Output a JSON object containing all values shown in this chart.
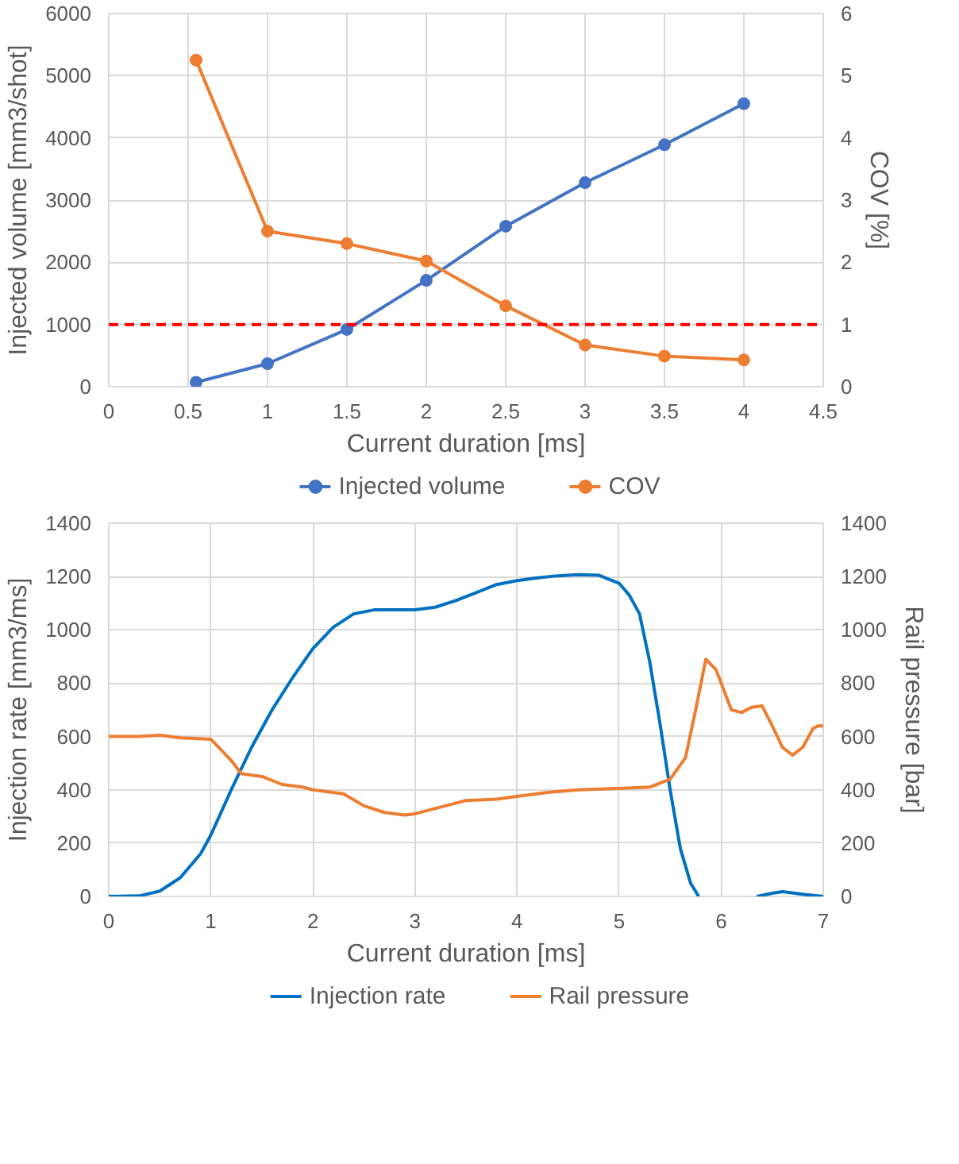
{
  "chart_data": [
    {
      "type": "line",
      "xlabel": "Current duration [ms]",
      "ylabel": "Injected volume [mm3/shot]",
      "y2label": "COV [%]",
      "x": [
        0.55,
        1,
        1.5,
        2,
        2.5,
        3,
        3.5,
        4
      ],
      "series": [
        {
          "name": "Injected volume",
          "color": "#4472c4",
          "values": [
            70,
            370,
            920,
            1710,
            2580,
            3280,
            3890,
            4550
          ]
        },
        {
          "name": "COV",
          "color": "#ed7d31",
          "axis": "y2",
          "values": [
            5.25,
            2.5,
            2.3,
            2.02,
            1.3,
            0.67,
            0.49,
            0.43
          ]
        }
      ],
      "xlim": [
        0,
        4.5
      ],
      "xticks": [
        0,
        0.5,
        1,
        1.5,
        2,
        2.5,
        3,
        3.5,
        4,
        4.5
      ],
      "ylim": [
        0,
        6000
      ],
      "yticks": [
        0,
        1000,
        2000,
        3000,
        4000,
        5000,
        6000
      ],
      "y2lim": [
        0,
        6
      ],
      "y2ticks": [
        0,
        1,
        2,
        3,
        4,
        5,
        6
      ],
      "ref_lines": [
        {
          "axis": "y2",
          "value": 1,
          "color": "#ff0000",
          "line_style": "dashed"
        }
      ],
      "grid": true,
      "legend": "bottom",
      "marker": "circle",
      "line_style": "solid"
    },
    {
      "type": "line",
      "xlabel": "Current duration [ms]",
      "ylabel": "Injection rate [mm3/ms]",
      "y2label": "Rail pressure [bar]",
      "series": [
        {
          "name": "Injection rate",
          "color": "#0070c0",
          "x": [
            0,
            0.3,
            0.5,
            0.7,
            0.9,
            1.0,
            1.2,
            1.4,
            1.6,
            1.8,
            2.0,
            2.2,
            2.4,
            2.6,
            2.8,
            3.0,
            3.2,
            3.4,
            3.6,
            3.8,
            4.0,
            4.2,
            4.4,
            4.6,
            4.8,
            5.0,
            5.1,
            5.2,
            5.3,
            5.4,
            5.5,
            5.6,
            5.7,
            5.78,
            6.0,
            6.35,
            6.5,
            6.6,
            6.8,
            7.0
          ],
          "values": [
            0,
            2,
            20,
            70,
            160,
            230,
            400,
            560,
            700,
            820,
            930,
            1010,
            1060,
            1075,
            1075,
            1075,
            1085,
            1110,
            1140,
            1170,
            1185,
            1195,
            1203,
            1207,
            1205,
            1175,
            1130,
            1060,
            880,
            650,
            400,
            180,
            50,
            0,
            null,
            0,
            12,
            18,
            8,
            0
          ]
        },
        {
          "name": "Rail pressure",
          "color": "#ed7d31",
          "axis": "y2",
          "x": [
            0,
            0.3,
            0.5,
            0.7,
            1.0,
            1.2,
            1.3,
            1.5,
            1.7,
            1.9,
            2.0,
            2.3,
            2.5,
            2.7,
            2.9,
            3.0,
            3.3,
            3.5,
            3.8,
            4.0,
            4.3,
            4.6,
            5.0,
            5.3,
            5.5,
            5.65,
            5.75,
            5.85,
            5.95,
            6.1,
            6.2,
            6.3,
            6.4,
            6.5,
            6.6,
            6.7,
            6.8,
            6.9,
            6.95,
            7.0
          ],
          "values": [
            600,
            600,
            605,
            595,
            590,
            510,
            460,
            450,
            420,
            410,
            400,
            385,
            340,
            315,
            305,
            310,
            340,
            360,
            365,
            375,
            390,
            400,
            405,
            410,
            440,
            520,
            700,
            890,
            850,
            700,
            690,
            710,
            715,
            640,
            560,
            530,
            560,
            630,
            640,
            640
          ]
        }
      ],
      "xlim": [
        0,
        7
      ],
      "xticks": [
        0,
        1,
        2,
        3,
        4,
        5,
        6,
        7
      ],
      "ylim": [
        0,
        1400
      ],
      "yticks": [
        0,
        200,
        400,
        600,
        800,
        1000,
        1200,
        1400
      ],
      "y2lim": [
        0,
        1400
      ],
      "y2ticks": [
        0,
        200,
        400,
        600,
        800,
        1000,
        1200,
        1400
      ],
      "grid": true,
      "legend": "bottom",
      "line_style": "solid"
    }
  ]
}
